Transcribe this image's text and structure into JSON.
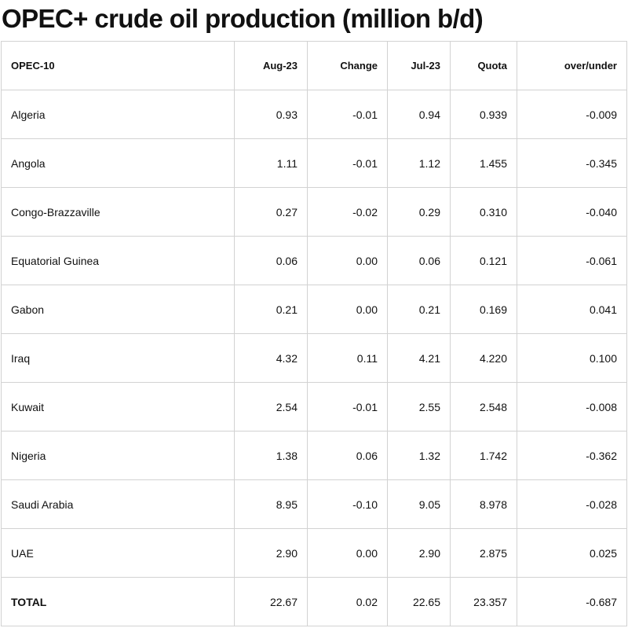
{
  "chart_data": {
    "type": "table",
    "title": "OPEC+ crude oil production (million b/d)",
    "columns": [
      "OPEC-10",
      "Aug-23",
      "Change",
      "Jul-23",
      "Quota",
      "over/under"
    ],
    "rows": [
      [
        "Algeria",
        "0.93",
        "-0.01",
        "0.94",
        "0.939",
        "-0.009"
      ],
      [
        "Angola",
        "1.11",
        "-0.01",
        "1.12",
        "1.455",
        "-0.345"
      ],
      [
        "Congo-Brazzaville",
        "0.27",
        "-0.02",
        "0.29",
        "0.310",
        "-0.040"
      ],
      [
        "Equatorial Guinea",
        "0.06",
        "0.00",
        "0.06",
        "0.121",
        "-0.061"
      ],
      [
        "Gabon",
        "0.21",
        "0.00",
        "0.21",
        "0.169",
        "0.041"
      ],
      [
        "Iraq",
        "4.32",
        "0.11",
        "4.21",
        "4.220",
        "0.100"
      ],
      [
        "Kuwait",
        "2.54",
        "-0.01",
        "2.55",
        "2.548",
        "-0.008"
      ],
      [
        "Nigeria",
        "1.38",
        "0.06",
        "1.32",
        "1.742",
        "-0.362"
      ],
      [
        "Saudi Arabia",
        "8.95",
        "-0.10",
        "9.05",
        "8.978",
        "-0.028"
      ],
      [
        "UAE",
        "2.90",
        "0.00",
        "2.90",
        "2.875",
        "0.025"
      ]
    ],
    "total": [
      "TOTAL",
      "22.67",
      "0.02",
      "22.65",
      "23.357",
      "-0.687"
    ]
  }
}
